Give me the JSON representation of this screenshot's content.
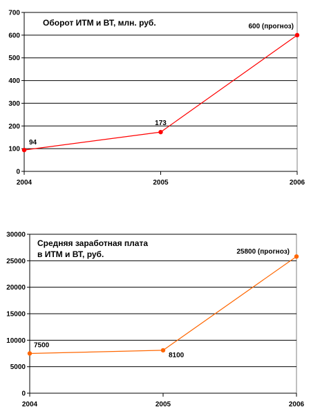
{
  "chart_data": [
    {
      "type": "line",
      "title": "Оборот ИТМ и ВТ, млн. руб.",
      "x": [
        "2004",
        "2005",
        "2006"
      ],
      "series": [
        {
          "values": [
            94,
            173,
            600
          ],
          "color": "#ff0000",
          "data_labels": [
            "94",
            "173",
            "600 (прогноз)"
          ]
        }
      ],
      "ylim": [
        0,
        700
      ],
      "yticks": [
        "0",
        "100",
        "200",
        "300",
        "400",
        "500",
        "600",
        "700"
      ],
      "grid": true
    },
    {
      "type": "line",
      "title_lines": [
        "Средняя заработная плата",
        "в ИТМ и ВТ, руб."
      ],
      "x": [
        "2004",
        "2005",
        "2006"
      ],
      "series": [
        {
          "values": [
            7500,
            8100,
            25800
          ],
          "color": "#ff6600",
          "data_labels": [
            "7500",
            "8100",
            "25800 (прогноз)"
          ]
        }
      ],
      "ylim": [
        0,
        30000
      ],
      "yticks": [
        "0",
        "5000",
        "10000",
        "15000",
        "20000",
        "25000",
        "30000"
      ],
      "grid": true
    }
  ]
}
